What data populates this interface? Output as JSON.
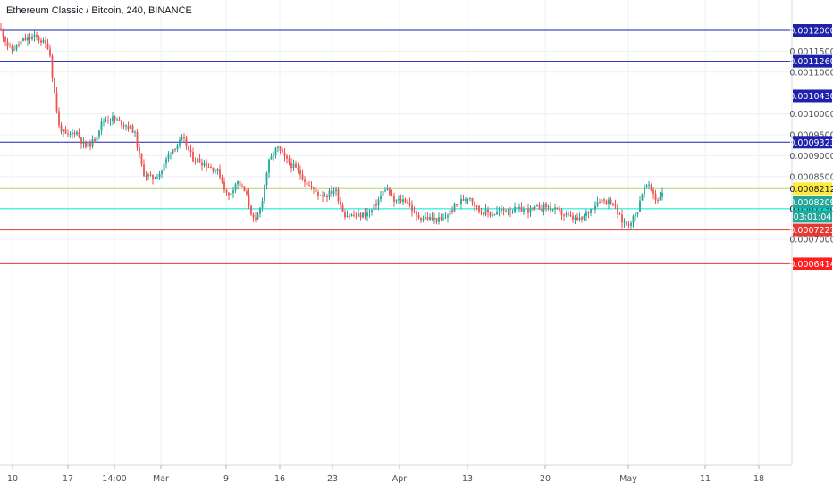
{
  "header": {
    "symbol_line": "Ethereum Classic / Bitcoin, 240, BINANCE"
  },
  "countdown": "03:01:04",
  "chart_data": {
    "type": "candlestick",
    "title": "Ethereum Classic / Bitcoin, 240, BINANCE",
    "x_tick_labels": [
      "10",
      "17",
      "14:00",
      "Mar",
      "9",
      "16",
      "23",
      "Apr",
      "13",
      "20",
      "May",
      "11",
      "18"
    ],
    "y_tick_labels": [
      "0.0011500",
      "0.0011000",
      "0.0010000",
      "0.0009500",
      "0.0009000",
      "0.0008500",
      "0.0007000"
    ],
    "ylim": [
      0.0006,
      0.00124
    ],
    "grid": true,
    "last_price": 0.0008209,
    "horizontal_lines": [
      {
        "price": 0.0012,
        "label": "0.0012000",
        "color": "#1e22aa",
        "label_bg": "#1e22aa",
        "label_fg": "#ffffff"
      },
      {
        "price": 0.001126,
        "label": "0.0011260",
        "color": "#1e22aa",
        "label_bg": "#1e22aa",
        "label_fg": "#ffffff"
      },
      {
        "price": 0.001043,
        "label": "0.0010430",
        "color": "#1e22aa",
        "label_bg": "#1e22aa",
        "label_fg": "#ffffff"
      },
      {
        "price": 0.0009323,
        "label": "0.0009323",
        "color": "#1e22aa",
        "label_bg": "#1e22aa",
        "label_fg": "#ffffff"
      },
      {
        "price": 0.0008212,
        "label": "0.0008212",
        "color": "#b5d36b",
        "label_bg": "#ffeb3b",
        "label_fg": "#131722"
      },
      {
        "price": 0.000773,
        "label": "0.0007730",
        "color": "#00e5d4",
        "label_bg": "#00e5d4",
        "label_fg": "#131722"
      },
      {
        "price": 0.0007223,
        "label": "0.0007223",
        "color": "#e53935",
        "label_bg": "#e53935",
        "label_fg": "#ffffff"
      },
      {
        "price": 0.0006414,
        "label": "0.0006414",
        "color": "#e53935",
        "label_bg": "#ff1e1e",
        "label_fg": "#ffffff"
      }
    ],
    "price_path": [
      [
        0,
        0.001205
      ],
      [
        12,
        0.00115
      ],
      [
        25,
        0.001175
      ],
      [
        40,
        0.001185
      ],
      [
        55,
        0.00116
      ],
      [
        60,
        0.001065
      ],
      [
        66,
        0.00097
      ],
      [
        75,
        0.000945
      ],
      [
        85,
        0.00096
      ],
      [
        95,
        0.00092
      ],
      [
        105,
        0.000935
      ],
      [
        115,
        0.000985
      ],
      [
        125,
        0.00099
      ],
      [
        140,
        0.000975
      ],
      [
        150,
        0.00096
      ],
      [
        160,
        0.00086
      ],
      [
        170,
        0.000845
      ],
      [
        180,
        0.00086
      ],
      [
        190,
        0.00091
      ],
      [
        205,
        0.00094
      ],
      [
        215,
        0.000895
      ],
      [
        230,
        0.00088
      ],
      [
        245,
        0.00086
      ],
      [
        255,
        0.0008
      ],
      [
        265,
        0.00084
      ],
      [
        275,
        0.00081
      ],
      [
        285,
        0.000735
      ],
      [
        292,
        0.00078
      ],
      [
        300,
        0.00088
      ],
      [
        310,
        0.00092
      ],
      [
        320,
        0.00089
      ],
      [
        335,
        0.00086
      ],
      [
        345,
        0.00083
      ],
      [
        355,
        0.00081
      ],
      [
        365,
        0.000805
      ],
      [
        375,
        0.00082
      ],
      [
        385,
        0.00076
      ],
      [
        400,
        0.000755
      ],
      [
        415,
        0.000765
      ],
      [
        425,
        0.0008
      ],
      [
        432,
        0.000825
      ],
      [
        440,
        0.00079
      ],
      [
        455,
        0.000795
      ],
      [
        465,
        0.000755
      ],
      [
        480,
        0.00075
      ],
      [
        495,
        0.000745
      ],
      [
        505,
        0.00077
      ],
      [
        515,
        0.00079
      ],
      [
        525,
        0.000805
      ],
      [
        535,
        0.00077
      ],
      [
        550,
        0.00076
      ],
      [
        565,
        0.00077
      ],
      [
        580,
        0.00077
      ],
      [
        595,
        0.00077
      ],
      [
        610,
        0.00078
      ],
      [
        625,
        0.000765
      ],
      [
        640,
        0.00075
      ],
      [
        650,
        0.000745
      ],
      [
        660,
        0.00077
      ],
      [
        670,
        0.000795
      ],
      [
        685,
        0.00079
      ],
      [
        695,
        0.000745
      ],
      [
        702,
        0.000735
      ],
      [
        712,
        0.00076
      ],
      [
        718,
        0.00081
      ],
      [
        723,
        0.00083
      ],
      [
        730,
        0.000815
      ],
      [
        735,
        0.00079
      ],
      [
        742,
        0.00082
      ]
    ]
  }
}
